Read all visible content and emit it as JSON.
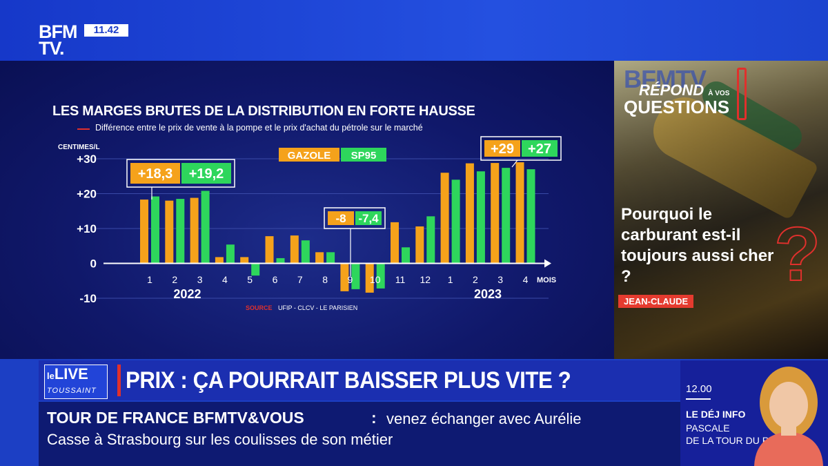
{
  "header": {
    "logo_line1": "BFM",
    "logo_line2": "TV.",
    "clock": "11.42"
  },
  "chart_data": {
    "type": "bar",
    "title": "LES MARGES BRUTES DE LA DISTRIBUTION EN FORTE HAUSSE",
    "subtitle": "Différence entre le prix de vente à la pompe et le prix d'achat du pétrole sur le marché",
    "ylabel": "CENTIMES/L",
    "xlabel": "MOIS",
    "ylim": [
      -10,
      30
    ],
    "yticks": [
      {
        "value": 30,
        "label": "+30"
      },
      {
        "value": 20,
        "label": "+20"
      },
      {
        "value": 10,
        "label": "+10"
      },
      {
        "value": 0,
        "label": "0"
      },
      {
        "value": -10,
        "label": "-10"
      }
    ],
    "categories": [
      "1",
      "2",
      "3",
      "4",
      "5",
      "6",
      "7",
      "8",
      "9",
      "10",
      "11",
      "12",
      "1",
      "2",
      "3",
      "4"
    ],
    "years": [
      {
        "label": "2022",
        "from": 0,
        "to": 3
      },
      {
        "label": "2023",
        "from": 12,
        "to": 15
      }
    ],
    "series": [
      {
        "name": "GAZOLE",
        "color": "#f5a21b",
        "values": [
          18.3,
          18,
          18.8,
          1.8,
          1.8,
          7.8,
          8,
          3.2,
          -8,
          -8.4,
          11.8,
          10.6,
          26,
          28.7,
          28.8,
          29
        ]
      },
      {
        "name": "SP95",
        "color": "#2ed65c",
        "values": [
          19.2,
          18.5,
          20.8,
          5.4,
          -3.5,
          1.5,
          6.6,
          3.2,
          -7.4,
          -7.2,
          4.6,
          13.5,
          24,
          26.4,
          27.4,
          27
        ]
      }
    ],
    "callouts": [
      {
        "index": 0,
        "gazole": "+18,3",
        "sp95": "+19,2"
      },
      {
        "index": 8,
        "gazole": "-8",
        "sp95": "-7,4"
      },
      {
        "index": 15,
        "gazole": "+29",
        "sp95": "+27"
      }
    ],
    "source_label": "SOURCE",
    "source_text": "UFIP - CLCV - LE PARISIEN",
    "grid": true,
    "legend_position": "top-center"
  },
  "right_panel": {
    "brand": "BFMTV",
    "title_line1": "RÉPOND",
    "title_small": "À VOS",
    "title_line2": "QUESTIONS",
    "question": "Pourquoi le carburant est-il toujours aussi cher ?",
    "asker": "JEAN-CLAUDE"
  },
  "live": {
    "word_le": "le",
    "word_live": "LIVE",
    "host": "TOUSSAINT"
  },
  "headline": "PRIX : ÇA POURRAIT BAISSER PLUS VITE ?",
  "ticker": {
    "bold": "TOUR DE FRANCE BFMTV&VOUS",
    "separator": ":",
    "line1": "venez échanger avec Aurélie",
    "line2": "Casse à Strasbourg sur les coulisses de son métier"
  },
  "next_show": {
    "time": "12.00",
    "title": "LE DÉJ INFO",
    "host_line1": "PASCALE",
    "host_line2": "DE LA TOUR DU PIN"
  },
  "colors": {
    "gazole": "#f5a21b",
    "sp95": "#2ed65c",
    "brand_blue": "#1c3fc4",
    "accent_red": "#e0302c"
  }
}
